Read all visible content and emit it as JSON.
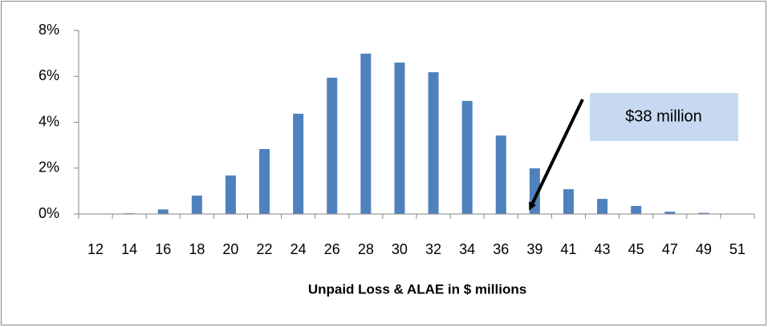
{
  "chart_data": {
    "type": "bar",
    "x_label": "Unpaid Loss & ALAE in $ millions",
    "categories": [
      "12",
      "14",
      "16",
      "18",
      "20",
      "22",
      "24",
      "26",
      "28",
      "30",
      "32",
      "34",
      "36",
      "39",
      "41",
      "43",
      "45",
      "47",
      "49",
      "51"
    ],
    "values": [
      0,
      0.03,
      0.2,
      0.8,
      1.68,
      2.83,
      4.37,
      5.94,
      6.99,
      6.6,
      6.18,
      4.93,
      3.42,
      1.99,
      1.08,
      0.66,
      0.35,
      0.1,
      0.05,
      0
    ],
    "color": "#4f81bd",
    "ylim": [
      0,
      8
    ],
    "yticks": [
      {
        "value": 0,
        "label": "0%"
      },
      {
        "value": 2,
        "label": "2%"
      },
      {
        "value": 4,
        "label": "4%"
      },
      {
        "value": 6,
        "label": "6%"
      },
      {
        "value": 8,
        "label": "8%"
      }
    ],
    "grid": false,
    "annotation": "$38 million"
  }
}
